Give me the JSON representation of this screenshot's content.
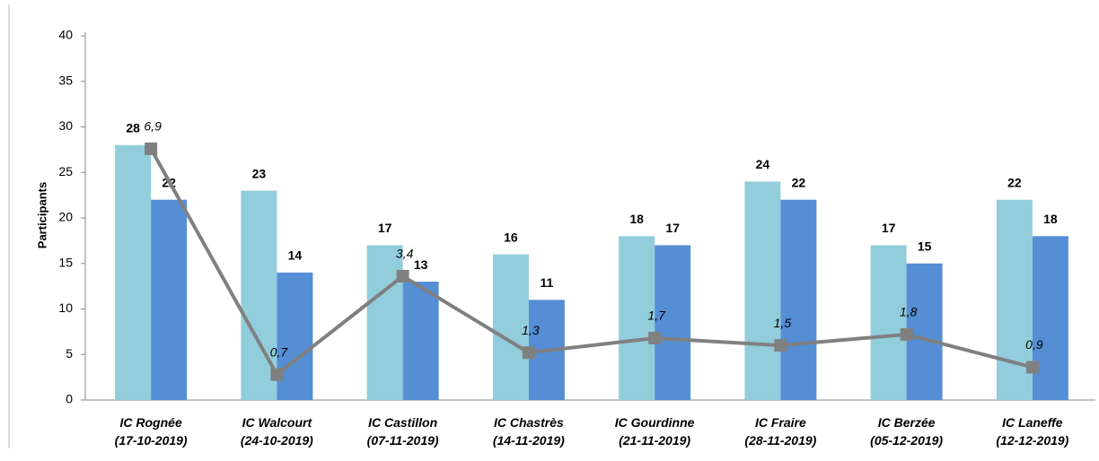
{
  "chart_data": {
    "type": "bar",
    "ylabel": "Participants",
    "categories": [
      "IC Rognée\n(17-10-2019)",
      "IC Walcourt\n(24-10-2019)",
      "IC Castillon\n(07-11-2019)",
      "IC Chastrès\n(14-11-2019)",
      "IC Gourdinne\n(21-11-2019)",
      "IC Fraire\n(28-11-2019)",
      "IC Berzée\n(05-12-2019)",
      "IC Laneffe\n(12-12-2019)"
    ],
    "series": [
      {
        "type": "bar",
        "color": "#92cddc",
        "values": [
          28,
          23,
          17,
          16,
          18,
          24,
          17,
          22
        ]
      },
      {
        "type": "bar",
        "color": "#558ed5",
        "values": [
          22,
          14,
          13,
          11,
          17,
          22,
          15,
          18
        ]
      },
      {
        "type": "line",
        "axis": "y2",
        "color": "#808080",
        "values": [
          6.9,
          0.7,
          3.4,
          1.3,
          1.7,
          1.5,
          1.8,
          0.9
        ],
        "value_labels": [
          "6,9",
          "0,7",
          "3,4",
          "1,3",
          "1,7",
          "1,5",
          "1,8",
          "0,9"
        ]
      }
    ],
    "ylim": [
      0,
      40
    ],
    "yticks": [
      0,
      5,
      10,
      15,
      20,
      25,
      30,
      35,
      40
    ],
    "y2lim": [
      0,
      10
    ]
  }
}
